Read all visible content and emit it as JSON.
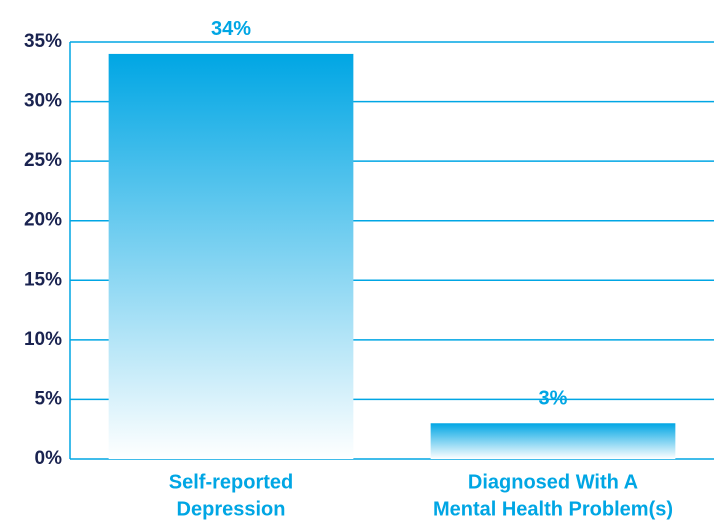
{
  "chart_data": {
    "type": "bar",
    "categories": [
      [
        "Self-reported",
        "Depression"
      ],
      [
        "Diagnosed With A",
        "Mental Health Problem(s)"
      ]
    ],
    "values": [
      34,
      3
    ],
    "value_labels": [
      "34%",
      "3%"
    ],
    "color": "#00a6e4",
    "ylim": [
      0,
      35
    ],
    "yticks": [
      {
        "value": 0,
        "label": "0%"
      },
      {
        "value": 5,
        "label": "5%"
      },
      {
        "value": 10,
        "label": "10%"
      },
      {
        "value": 15,
        "label": "15%"
      },
      {
        "value": 20,
        "label": "20%"
      },
      {
        "value": 25,
        "label": "25%"
      },
      {
        "value": 30,
        "label": "30%"
      },
      {
        "value": 35,
        "label": "35%"
      }
    ],
    "grid": true
  }
}
